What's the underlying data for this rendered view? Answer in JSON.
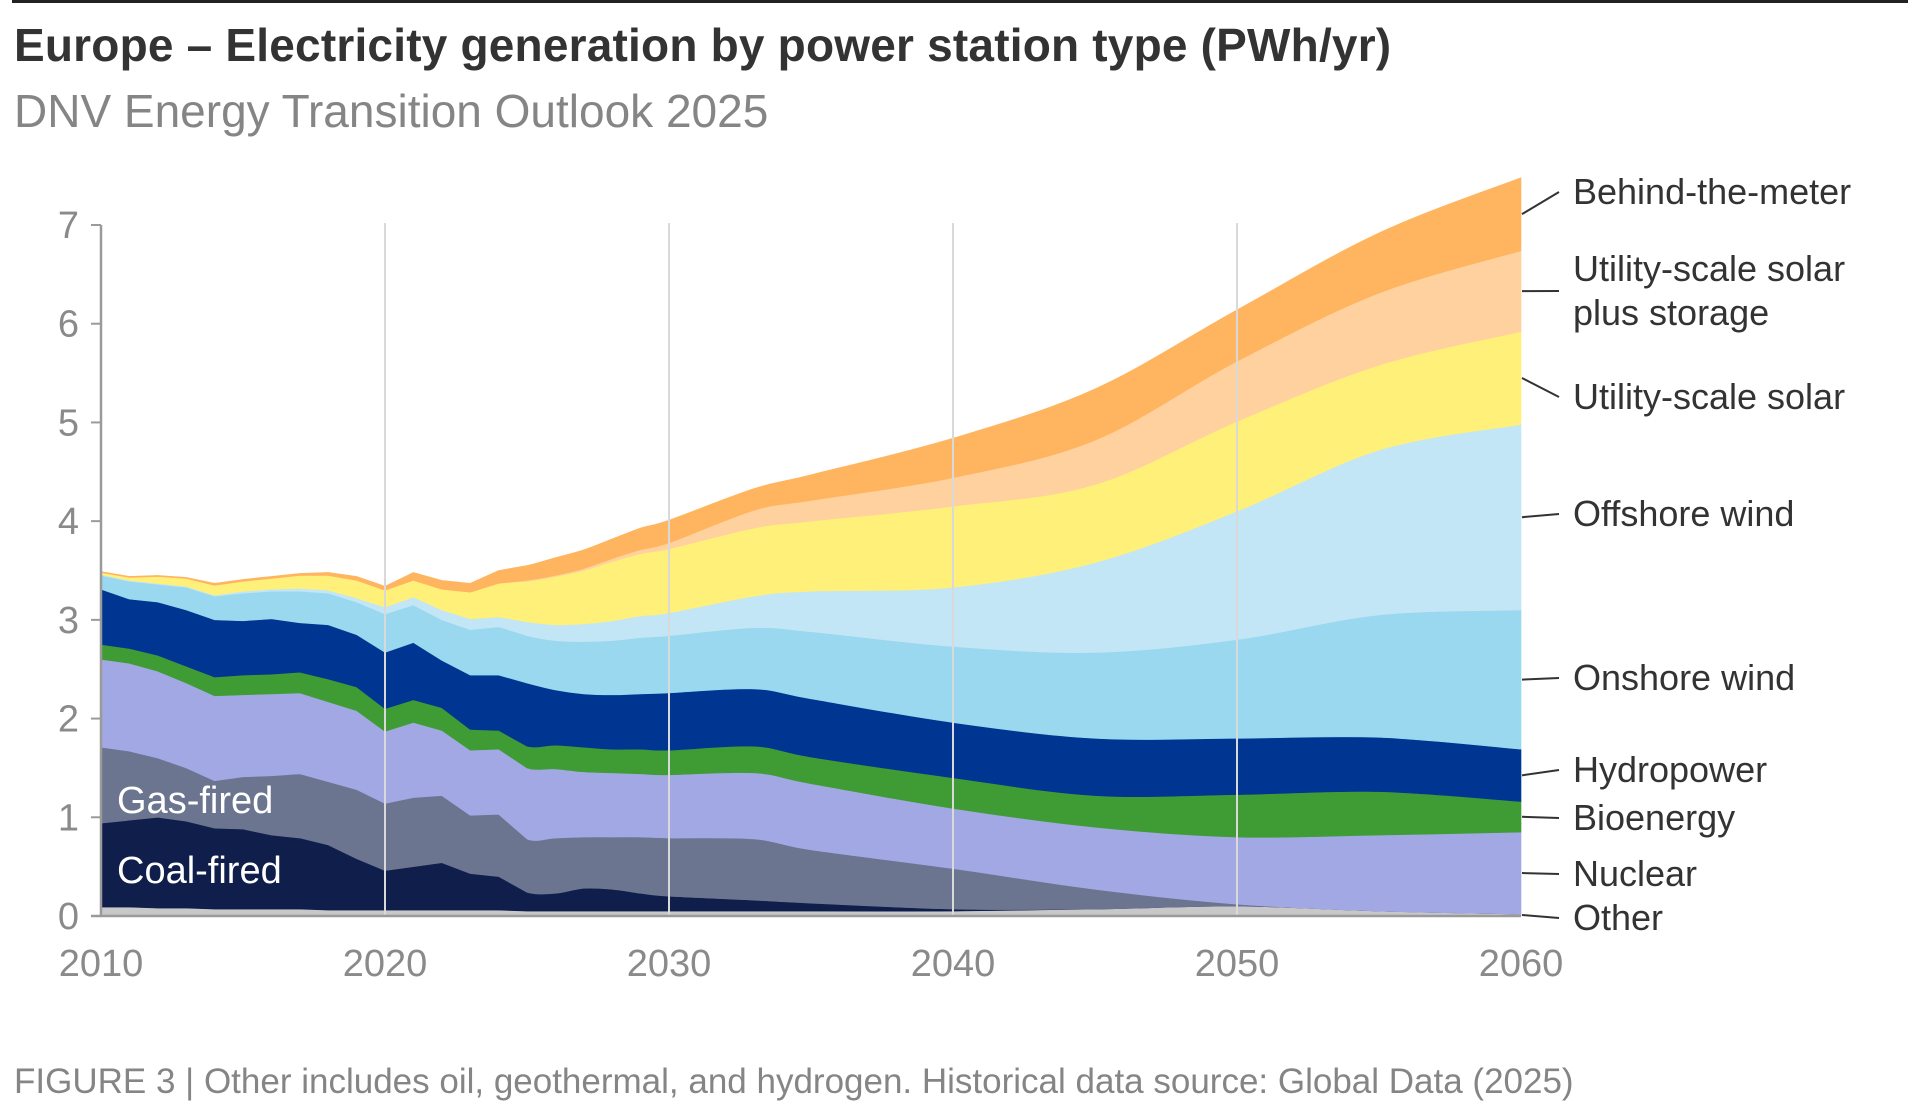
{
  "header": {
    "title": "Europe – Electricity generation by power station type (PWh/yr)",
    "subtitle": "DNV Energy Transition Outlook 2025"
  },
  "footer": {
    "caption": "FIGURE 3 | Other includes oil, geothermal, and hydrogen. Historical data source: Global Data (2025)"
  },
  "chart_data": {
    "type": "area",
    "stacked": true,
    "title": "Europe – Electricity generation by power station type (PWh/yr)",
    "subtitle": "DNV Energy Transition Outlook 2025",
    "xlabel": "",
    "ylabel": "PWh/yr",
    "xlim": [
      2010,
      2060
    ],
    "ylim": [
      0,
      7
    ],
    "x_ticks": [
      "2010",
      "2020",
      "2030",
      "2040",
      "2050",
      "2060"
    ],
    "y_ticks": [
      "0",
      "1",
      "2",
      "3",
      "4",
      "5",
      "6",
      "7"
    ],
    "grid": "vertical gridlines at decades",
    "legend": "direct labels right",
    "historical_until": 2024,
    "x": [
      2010,
      2011,
      2012,
      2013,
      2014,
      2015,
      2016,
      2017,
      2018,
      2019,
      2020,
      2021,
      2022,
      2023,
      2024,
      2025,
      2026,
      2027,
      2028,
      2029,
      2030,
      2033,
      2035,
      2040,
      2045,
      2050,
      2055,
      2060
    ],
    "series": [
      {
        "name": "Other",
        "color": "#C8C8C8",
        "values": [
          0.09,
          0.09,
          0.08,
          0.08,
          0.07,
          0.07,
          0.07,
          0.07,
          0.06,
          0.06,
          0.06,
          0.06,
          0.06,
          0.06,
          0.06,
          0.05,
          0.05,
          0.05,
          0.05,
          0.05,
          0.05,
          0.05,
          0.05,
          0.05,
          0.07,
          0.1,
          0.05,
          0.02
        ]
      },
      {
        "name": "Coal-fired",
        "color": "#0F1E4B",
        "values": [
          0.85,
          0.88,
          0.92,
          0.88,
          0.82,
          0.81,
          0.75,
          0.72,
          0.66,
          0.52,
          0.4,
          0.44,
          0.48,
          0.37,
          0.34,
          0.19,
          0.18,
          0.23,
          0.22,
          0.18,
          0.15,
          0.11,
          0.08,
          0.02,
          0,
          0,
          0,
          0
        ]
      },
      {
        "name": "Gas-fired",
        "color": "#6C7590",
        "values": [
          0.77,
          0.7,
          0.6,
          0.54,
          0.48,
          0.53,
          0.6,
          0.65,
          0.64,
          0.7,
          0.68,
          0.7,
          0.68,
          0.59,
          0.63,
          0.54,
          0.56,
          0.52,
          0.53,
          0.57,
          0.59,
          0.62,
          0.54,
          0.41,
          0.2,
          0.02,
          0,
          0
        ]
      },
      {
        "name": "Nuclear",
        "color": "#A2A8E3",
        "values": [
          0.89,
          0.89,
          0.88,
          0.86,
          0.86,
          0.83,
          0.83,
          0.82,
          0.81,
          0.8,
          0.73,
          0.76,
          0.66,
          0.66,
          0.66,
          0.72,
          0.7,
          0.66,
          0.65,
          0.64,
          0.64,
          0.67,
          0.67,
          0.61,
          0.63,
          0.68,
          0.77,
          0.83
        ]
      },
      {
        "name": "Bioenergy",
        "color": "#3F9C35",
        "values": [
          0.15,
          0.15,
          0.16,
          0.17,
          0.19,
          0.2,
          0.2,
          0.21,
          0.23,
          0.24,
          0.23,
          0.23,
          0.23,
          0.21,
          0.19,
          0.22,
          0.24,
          0.25,
          0.24,
          0.25,
          0.25,
          0.27,
          0.27,
          0.31,
          0.32,
          0.43,
          0.44,
          0.31
        ]
      },
      {
        "name": "Hydropower",
        "color": "#003591",
        "values": [
          0.56,
          0.5,
          0.54,
          0.57,
          0.58,
          0.55,
          0.56,
          0.5,
          0.55,
          0.53,
          0.57,
          0.58,
          0.48,
          0.55,
          0.56,
          0.64,
          0.56,
          0.54,
          0.55,
          0.56,
          0.58,
          0.58,
          0.59,
          0.56,
          0.58,
          0.57,
          0.55,
          0.53
        ]
      },
      {
        "name": "Onshore wind",
        "color": "#99D8EE",
        "values": [
          0.14,
          0.18,
          0.18,
          0.23,
          0.24,
          0.28,
          0.28,
          0.32,
          0.32,
          0.33,
          0.39,
          0.38,
          0.41,
          0.46,
          0.49,
          0.48,
          0.5,
          0.53,
          0.55,
          0.57,
          0.58,
          0.62,
          0.68,
          0.77,
          0.87,
          1.0,
          1.24,
          1.41
        ]
      },
      {
        "name": "Offshore wind",
        "color": "#C2E6F5",
        "values": [
          0.01,
          0.01,
          0.01,
          0.01,
          0.01,
          0.02,
          0.02,
          0.03,
          0.03,
          0.04,
          0.07,
          0.08,
          0.1,
          0.11,
          0.1,
          0.14,
          0.16,
          0.18,
          0.2,
          0.22,
          0.23,
          0.32,
          0.41,
          0.6,
          0.91,
          1.3,
          1.67,
          1.88
        ]
      },
      {
        "name": "Utility-scale solar",
        "color": "#FFF07A",
        "values": [
          0.02,
          0.03,
          0.07,
          0.08,
          0.1,
          0.1,
          0.11,
          0.13,
          0.15,
          0.18,
          0.17,
          0.17,
          0.21,
          0.27,
          0.34,
          0.41,
          0.49,
          0.54,
          0.6,
          0.63,
          0.65,
          0.69,
          0.71,
          0.82,
          0.79,
          0.91,
          0.86,
          0.94
        ]
      },
      {
        "name": "Utility-scale solar plus storage",
        "color": "#FFD19E",
        "values": [
          0,
          0,
          0,
          0,
          0,
          0,
          0,
          0,
          0,
          0,
          0,
          0,
          0,
          0,
          0,
          0.01,
          0.01,
          0.02,
          0.03,
          0.04,
          0.06,
          0.18,
          0.21,
          0.29,
          0.45,
          0.61,
          0.73,
          0.82
        ]
      },
      {
        "name": "Behind-the-meter",
        "color": "#FFB45F",
        "values": [
          0.01,
          0.01,
          0.01,
          0.01,
          0.02,
          0.02,
          0.02,
          0.02,
          0.03,
          0.04,
          0.04,
          0.08,
          0.09,
          0.09,
          0.13,
          0.15,
          0.18,
          0.19,
          0.2,
          0.22,
          0.23,
          0.22,
          0.26,
          0.4,
          0.52,
          0.52,
          0.61,
          0.74
        ]
      }
    ],
    "right_labels": [
      {
        "series": "Behind-the-meter",
        "lines": [
          "Behind-the-meter"
        ]
      },
      {
        "series": "Utility-scale solar plus storage",
        "lines": [
          "Utility-scale solar",
          "plus storage"
        ]
      },
      {
        "series": "Utility-scale solar",
        "lines": [
          "Utility-scale solar"
        ]
      },
      {
        "series": "Offshore wind",
        "lines": [
          "Offshore wind"
        ]
      },
      {
        "series": "Onshore wind",
        "lines": [
          "Onshore wind"
        ]
      },
      {
        "series": "Hydropower",
        "lines": [
          "Hydropower"
        ]
      },
      {
        "series": "Bioenergy",
        "lines": [
          "Bioenergy"
        ]
      },
      {
        "series": "Nuclear",
        "lines": [
          "Nuclear"
        ]
      },
      {
        "series": "Other",
        "lines": [
          "Other"
        ]
      }
    ],
    "inline_labels": [
      {
        "series": "Gas-fired",
        "text": "Gas-fired"
      },
      {
        "series": "Coal-fired",
        "text": "Coal-fired"
      }
    ]
  }
}
